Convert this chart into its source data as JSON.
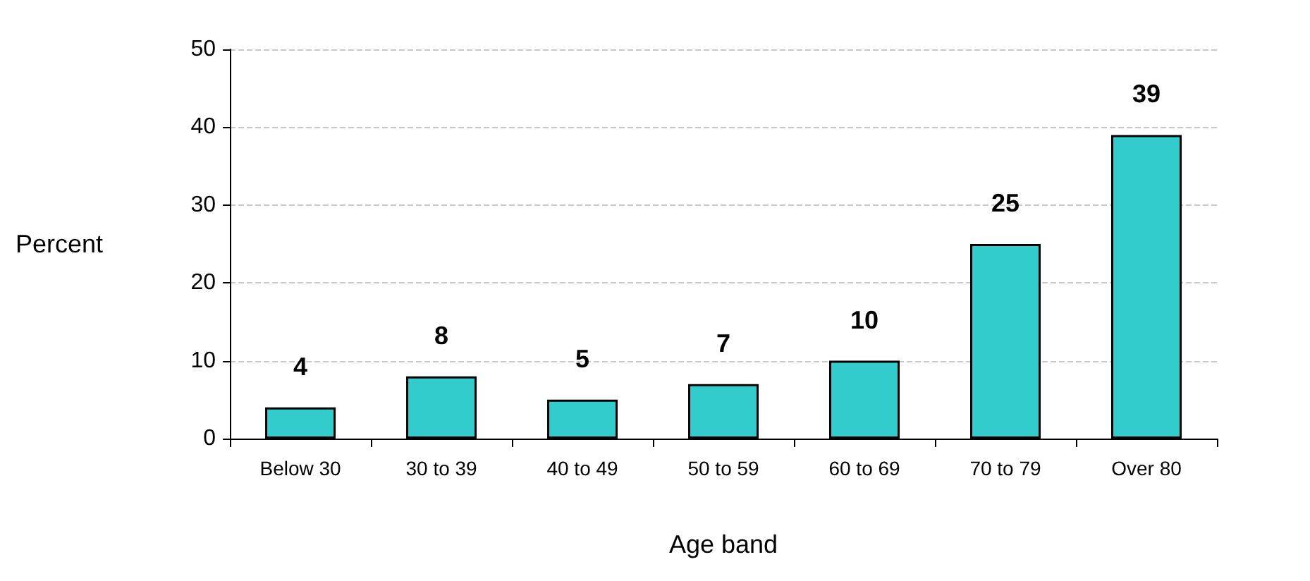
{
  "chart_data": {
    "type": "bar",
    "xlabel": "Age band",
    "ylabel": "Percent",
    "categories": [
      "Below 30",
      "30 to 39",
      "40 to 49",
      "50 to 59",
      "60 to 69",
      "70 to 79",
      "Over 80"
    ],
    "values": [
      4,
      8,
      5,
      7,
      10,
      25,
      39
    ],
    "color": "#33cccc",
    "ylim": [
      0,
      50
    ],
    "yticks": [
      0,
      10,
      20,
      30,
      40,
      50
    ],
    "grid": "y",
    "data_labels": true
  }
}
